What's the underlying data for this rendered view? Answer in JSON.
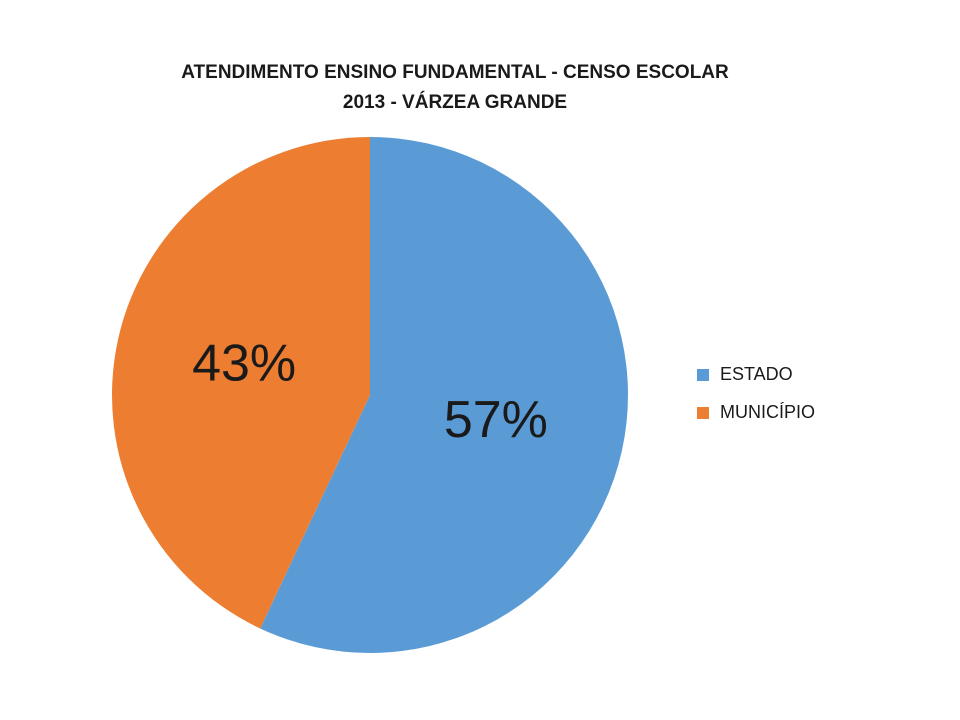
{
  "chart_data": {
    "type": "pie",
    "title": "ATENDIMENTO ENSINO FUNDAMENTAL - CENSO ESCOLAR 2013 - VÁRZEA GRANDE",
    "categories": [
      "ESTADO",
      "MUNICÍPIO"
    ],
    "values": [
      57,
      43
    ],
    "value_labels": [
      "57%",
      "43%"
    ],
    "colors": [
      "#5b9bd5",
      "#ed7d31"
    ],
    "legend": "right"
  }
}
